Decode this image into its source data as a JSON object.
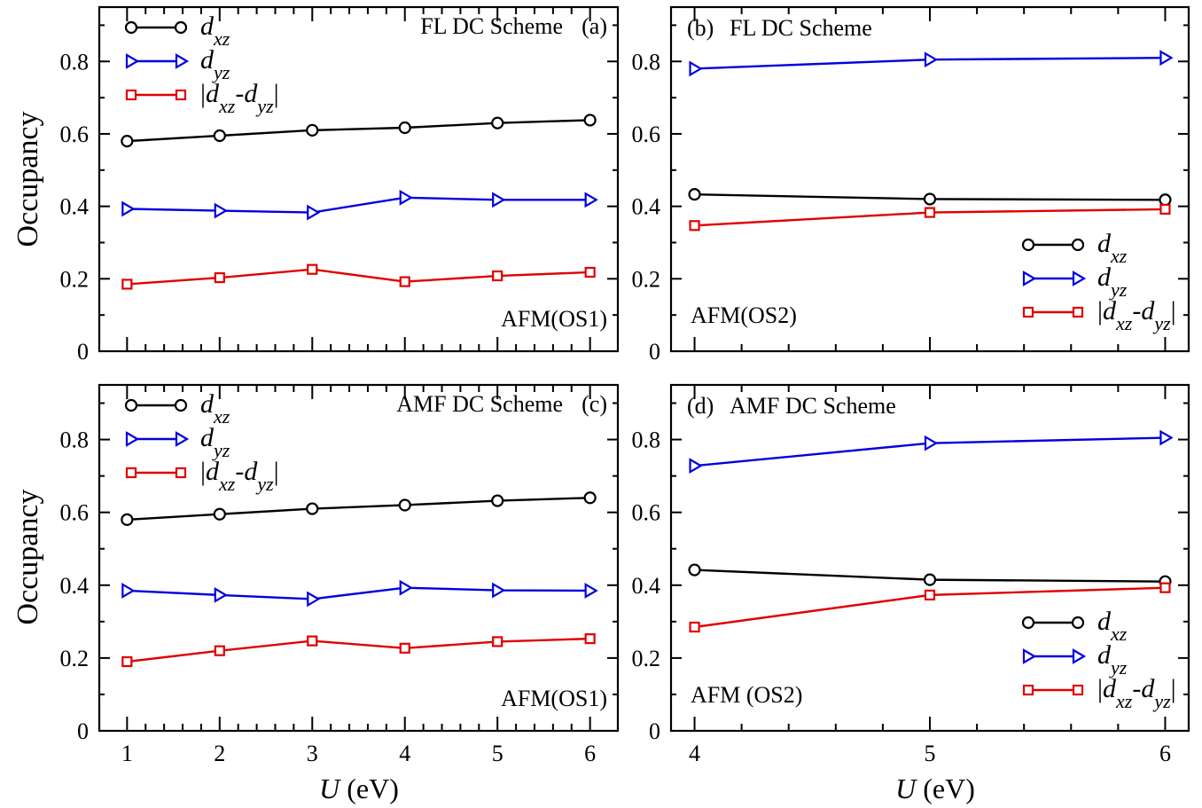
{
  "figure": {
    "ylabel": "Occupancy",
    "xlabel_var": "U",
    "xlabel_unit": " (eV)"
  },
  "chart_data": [
    {
      "id": "a",
      "type": "line",
      "scheme_label": "FL DC Scheme",
      "panel_label": "(a)",
      "state_label": "AFM(OS1)",
      "legend_position": "top-left",
      "xlim": [
        0.7,
        6.3
      ],
      "ylim": [
        0,
        0.95
      ],
      "x": [
        1,
        2,
        3,
        4,
        5,
        6
      ],
      "x_ticks": [
        "1",
        "2",
        "3",
        "4",
        "5",
        "6"
      ],
      "y_ticks": [
        "0",
        "0.2",
        "0.4",
        "0.6",
        "0.8"
      ],
      "series": [
        {
          "key": "dxz",
          "color": "#000000",
          "marker": "circle",
          "values": [
            0.58,
            0.595,
            0.61,
            0.617,
            0.63,
            0.638
          ]
        },
        {
          "key": "dyz",
          "color": "#0000e0",
          "marker": "triangle-right",
          "values": [
            0.393,
            0.388,
            0.383,
            0.424,
            0.418,
            0.418
          ]
        },
        {
          "key": "diff",
          "color": "#e00000",
          "marker": "square",
          "values": [
            0.185,
            0.203,
            0.226,
            0.192,
            0.208,
            0.218
          ]
        }
      ]
    },
    {
      "id": "b",
      "type": "line",
      "scheme_label": "FL DC Scheme",
      "panel_label": "(b)",
      "state_label": "AFM(OS2)",
      "legend_position": "bottom-right",
      "xlim": [
        3.9,
        6.1
      ],
      "ylim": [
        0,
        0.95
      ],
      "x": [
        4,
        5,
        6
      ],
      "x_ticks": [
        "4",
        "5",
        "6"
      ],
      "y_ticks": [
        "0",
        "0.2",
        "0.4",
        "0.6",
        "0.8"
      ],
      "series": [
        {
          "key": "dxz",
          "color": "#000000",
          "marker": "circle",
          "values": [
            0.433,
            0.42,
            0.418
          ]
        },
        {
          "key": "dyz",
          "color": "#0000e0",
          "marker": "triangle-right",
          "values": [
            0.78,
            0.805,
            0.81
          ]
        },
        {
          "key": "diff",
          "color": "#e00000",
          "marker": "square",
          "values": [
            0.347,
            0.383,
            0.392
          ]
        }
      ]
    },
    {
      "id": "c",
      "type": "line",
      "scheme_label": "AMF DC Scheme",
      "panel_label": "(c)",
      "state_label": "AFM(OS1)",
      "legend_position": "top-left",
      "xlim": [
        0.7,
        6.3
      ],
      "ylim": [
        0,
        0.95
      ],
      "x": [
        1,
        2,
        3,
        4,
        5,
        6
      ],
      "x_ticks": [
        "1",
        "2",
        "3",
        "4",
        "5",
        "6"
      ],
      "y_ticks": [
        "0",
        "0.2",
        "0.4",
        "0.6",
        "0.8"
      ],
      "series": [
        {
          "key": "dxz",
          "color": "#000000",
          "marker": "circle",
          "values": [
            0.58,
            0.595,
            0.61,
            0.62,
            0.632,
            0.64
          ]
        },
        {
          "key": "dyz",
          "color": "#0000e0",
          "marker": "triangle-right",
          "values": [
            0.385,
            0.373,
            0.362,
            0.393,
            0.386,
            0.385
          ]
        },
        {
          "key": "diff",
          "color": "#e00000",
          "marker": "square",
          "values": [
            0.19,
            0.22,
            0.247,
            0.227,
            0.245,
            0.253
          ]
        }
      ]
    },
    {
      "id": "d",
      "type": "line",
      "scheme_label": "AMF DC Scheme",
      "panel_label": "(d)",
      "state_label": "AFM (OS2)",
      "legend_position": "bottom-right",
      "xlim": [
        3.9,
        6.1
      ],
      "ylim": [
        0,
        0.95
      ],
      "x": [
        4,
        5,
        6
      ],
      "x_ticks": [
        "4",
        "5",
        "6"
      ],
      "y_ticks": [
        "0",
        "0.2",
        "0.4",
        "0.6",
        "0.8"
      ],
      "series": [
        {
          "key": "dxz",
          "color": "#000000",
          "marker": "circle",
          "values": [
            0.442,
            0.415,
            0.41
          ]
        },
        {
          "key": "dyz",
          "color": "#0000e0",
          "marker": "triangle-right",
          "values": [
            0.728,
            0.79,
            0.805
          ]
        },
        {
          "key": "diff",
          "color": "#e00000",
          "marker": "square",
          "values": [
            0.285,
            0.373,
            0.393
          ]
        }
      ]
    }
  ],
  "legend_text": {
    "dxz": {
      "base": "d",
      "sub": "xz"
    },
    "dyz": {
      "base": "d",
      "sub": "yz"
    },
    "diff": {
      "bar": "|",
      "a": "d",
      "a_sub": "xz",
      "minus": "-",
      "b": "d",
      "b_sub": "yz"
    }
  }
}
